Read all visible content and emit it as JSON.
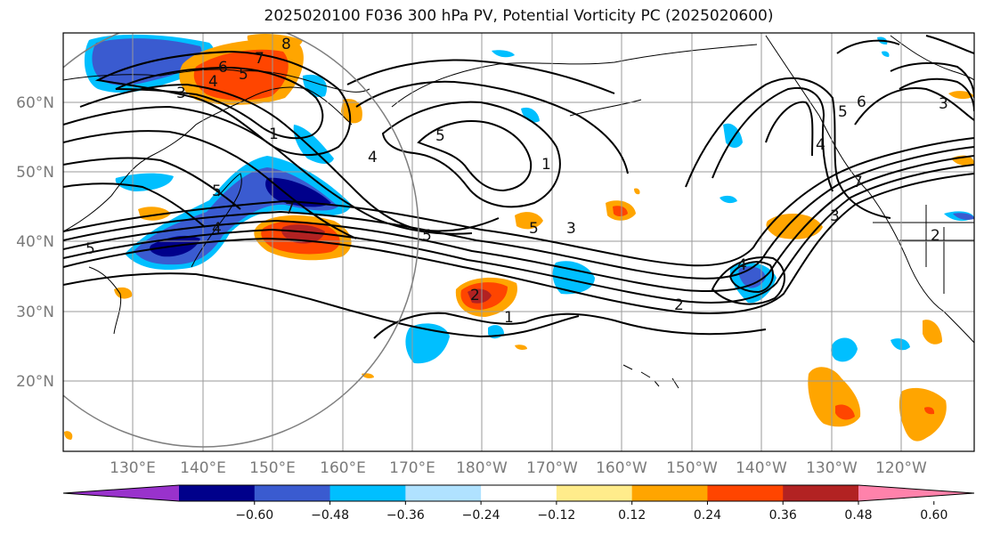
{
  "title": "2025020100 F036 300 hPa PV, Potential Vorticity PC (2025020600)",
  "lat_labels": [
    "60°N",
    "50°N",
    "40°N",
    "30°N",
    "20°N"
  ],
  "lon_labels": [
    "130°E",
    "140°E",
    "150°E",
    "160°E",
    "170°E",
    "180°W",
    "170°W",
    "160°W",
    "150°W",
    "140°W",
    "130°W",
    "120°W"
  ],
  "colorbar": {
    "colors": [
      "#9932cc",
      "#00008b",
      "#3a5bd0",
      "#00bfff",
      "#b0e2ff",
      "#ffffff",
      "#ffec8b",
      "#ffa500",
      "#ff4500",
      "#b22222",
      "#ff82ab"
    ],
    "tick_labels": [
      "-0.60",
      "-0.48",
      "-0.36",
      "-0.24",
      "-0.12",
      "0.12",
      "0.24",
      "0.36",
      "0.48",
      "0.60"
    ]
  },
  "contour_labels": [
    "8",
    "7",
    "6",
    "5",
    "4",
    "3",
    "1",
    "4",
    "5",
    "7",
    "4",
    "5",
    "5",
    "5",
    "3",
    "1",
    "5",
    "2",
    "1",
    "2",
    "4",
    "3",
    "6",
    "5",
    "7",
    "4",
    "2",
    "3"
  ]
}
